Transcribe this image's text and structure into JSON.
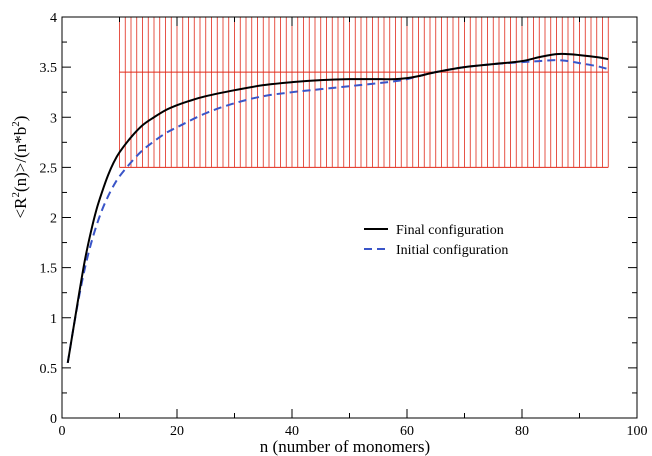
{
  "chart_data": {
    "type": "line",
    "xlabel": "n (number of monomers)",
    "ylabel_parts": {
      "pre": "<R",
      "sup1": "2",
      "mid": "(n)>/(n*b",
      "sup2": "2",
      "post": ")"
    },
    "xlim": [
      0,
      100
    ],
    "ylim": [
      0,
      4
    ],
    "x_ticks": [
      0,
      20,
      40,
      60,
      80,
      100
    ],
    "y_ticks": [
      0,
      0.5,
      1,
      1.5,
      2,
      2.5,
      3,
      3.5,
      4
    ],
    "x_tick_labels": [
      "0",
      "20",
      "40",
      "60",
      "80",
      "100"
    ],
    "y_tick_labels": [
      "0",
      "0.5",
      "1",
      "1.5",
      "2",
      "2.5",
      "3",
      "3.5",
      "4"
    ],
    "legend_position": "center-right",
    "series": [
      {
        "name": "Final configuration",
        "color": "#000000",
        "style": "solid",
        "x": [
          1,
          2,
          3,
          4,
          5,
          6,
          7,
          8,
          9,
          10,
          12,
          14,
          16,
          18,
          20,
          22,
          25,
          30,
          35,
          40,
          45,
          50,
          55,
          58,
          60,
          62,
          65,
          70,
          75,
          80,
          83,
          86,
          88,
          90,
          93,
          95
        ],
        "y": [
          0.55,
          0.9,
          1.25,
          1.58,
          1.85,
          2.08,
          2.26,
          2.42,
          2.55,
          2.65,
          2.8,
          2.92,
          3.0,
          3.07,
          3.12,
          3.16,
          3.21,
          3.27,
          3.32,
          3.35,
          3.37,
          3.38,
          3.38,
          3.38,
          3.39,
          3.41,
          3.45,
          3.5,
          3.53,
          3.56,
          3.6,
          3.63,
          3.63,
          3.62,
          3.6,
          3.58
        ]
      },
      {
        "name": "Initial configuration",
        "color": "#3a55c8",
        "style": "dashed",
        "x": [
          1,
          2,
          3,
          4,
          5,
          6,
          7,
          8,
          9,
          10,
          12,
          14,
          16,
          18,
          20,
          25,
          30,
          35,
          40,
          45,
          50,
          55,
          58,
          60,
          62,
          65,
          70,
          75,
          80,
          83,
          86,
          88,
          90,
          93,
          95
        ],
        "y": [
          0.55,
          0.9,
          1.22,
          1.5,
          1.73,
          1.92,
          2.08,
          2.21,
          2.32,
          2.41,
          2.55,
          2.67,
          2.76,
          2.84,
          2.9,
          3.04,
          3.14,
          3.21,
          3.25,
          3.28,
          3.31,
          3.34,
          3.36,
          3.38,
          3.41,
          3.45,
          3.5,
          3.53,
          3.55,
          3.56,
          3.57,
          3.56,
          3.54,
          3.51,
          3.48
        ]
      }
    ],
    "overlay": {
      "color": "#e02a1a",
      "band_x": [
        10,
        95
      ],
      "band_y": [
        2.5,
        4
      ],
      "hline_y": 3.45,
      "vline_spacing": 1
    }
  }
}
